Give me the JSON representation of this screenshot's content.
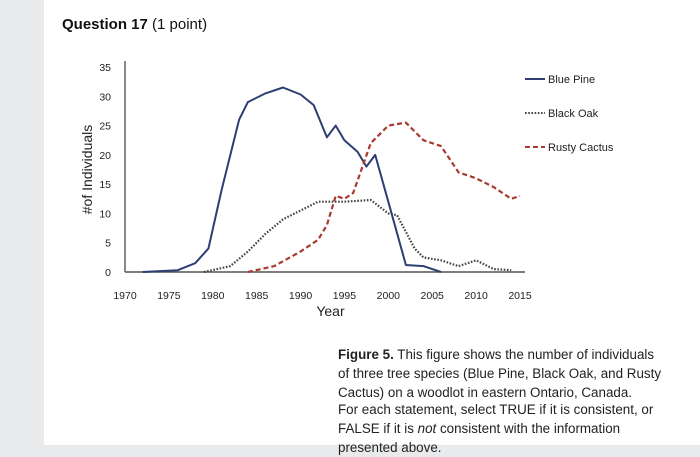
{
  "question": {
    "title": "Question 17",
    "points": "(1 point)"
  },
  "chart_data": {
    "type": "line",
    "xlabel": "Year",
    "ylabel": "#of Individuals",
    "xlim": [
      1970,
      2015
    ],
    "ylim": [
      0,
      35
    ],
    "x_ticks": [
      1970,
      1975,
      1980,
      1985,
      1990,
      1995,
      2000,
      2005,
      2010,
      2015
    ],
    "y_ticks": [
      0,
      5,
      10,
      15,
      20,
      25,
      30,
      35
    ],
    "legend_position": "right",
    "series": [
      {
        "name": "Blue Pine",
        "style": "solid",
        "color": "#2c3e73",
        "points": [
          [
            1972,
            0
          ],
          [
            1976,
            0.3
          ],
          [
            1978,
            1.5
          ],
          [
            1979.5,
            4
          ],
          [
            1981,
            14
          ],
          [
            1983,
            26
          ],
          [
            1984,
            29
          ],
          [
            1986,
            30.5
          ],
          [
            1988,
            31.5
          ],
          [
            1990,
            30.3
          ],
          [
            1991.5,
            28.5
          ],
          [
            1993,
            23
          ],
          [
            1994,
            25
          ],
          [
            1995,
            22.5
          ],
          [
            1996.5,
            20.5
          ],
          [
            1997.5,
            18
          ],
          [
            1998.5,
            20
          ],
          [
            2000,
            12
          ],
          [
            2002,
            1.2
          ],
          [
            2004,
            1
          ],
          [
            2006,
            0
          ]
        ]
      },
      {
        "name": "Black Oak",
        "style": "dotted",
        "color": "#444444",
        "points": [
          [
            1979,
            0
          ],
          [
            1982,
            1
          ],
          [
            1984,
            3.5
          ],
          [
            1986,
            6.5
          ],
          [
            1988,
            9
          ],
          [
            1990,
            10.5
          ],
          [
            1992,
            12
          ],
          [
            1995,
            12
          ],
          [
            1998,
            12.3
          ],
          [
            2000,
            10
          ],
          [
            2001,
            9.7
          ],
          [
            2003,
            4
          ],
          [
            2004,
            2.5
          ],
          [
            2006,
            2
          ],
          [
            2008,
            1
          ],
          [
            2010,
            2
          ],
          [
            2012,
            0.5
          ],
          [
            2014,
            0.3
          ],
          [
            2016,
            1
          ],
          [
            2017,
            0.5
          ],
          [
            2018,
            0
          ]
        ]
      },
      {
        "name": "Rusty Cactus",
        "style": "dashed",
        "color": "#a83a2f",
        "points": [
          [
            1984,
            0
          ],
          [
            1987,
            1
          ],
          [
            1990,
            3.5
          ],
          [
            1992,
            5.5
          ],
          [
            1993,
            8
          ],
          [
            1994,
            13
          ],
          [
            1995,
            12.5
          ],
          [
            1996,
            13.5
          ],
          [
            1998,
            22
          ],
          [
            2000,
            25
          ],
          [
            2002,
            25.5
          ],
          [
            2004,
            22.5
          ],
          [
            2006,
            21.5
          ],
          [
            2008,
            17
          ],
          [
            2010,
            16
          ],
          [
            2012,
            14.5
          ],
          [
            2014,
            12.5
          ],
          [
            2015,
            13
          ],
          [
            2016,
            13
          ],
          [
            2020,
            13
          ]
        ]
      }
    ]
  },
  "caption": {
    "label": "Figure 5.",
    "text": " This figure shows the number of individuals of three tree species (Blue Pine, Black Oak, and Rusty Cactus) on a woodlot in eastern Ontario, Canada."
  },
  "instructions": {
    "part1": "For each statement, select TRUE if it is consistent, or FALSE if it is ",
    "emphasis": "not",
    "part2": " consistent with the information presented above."
  }
}
